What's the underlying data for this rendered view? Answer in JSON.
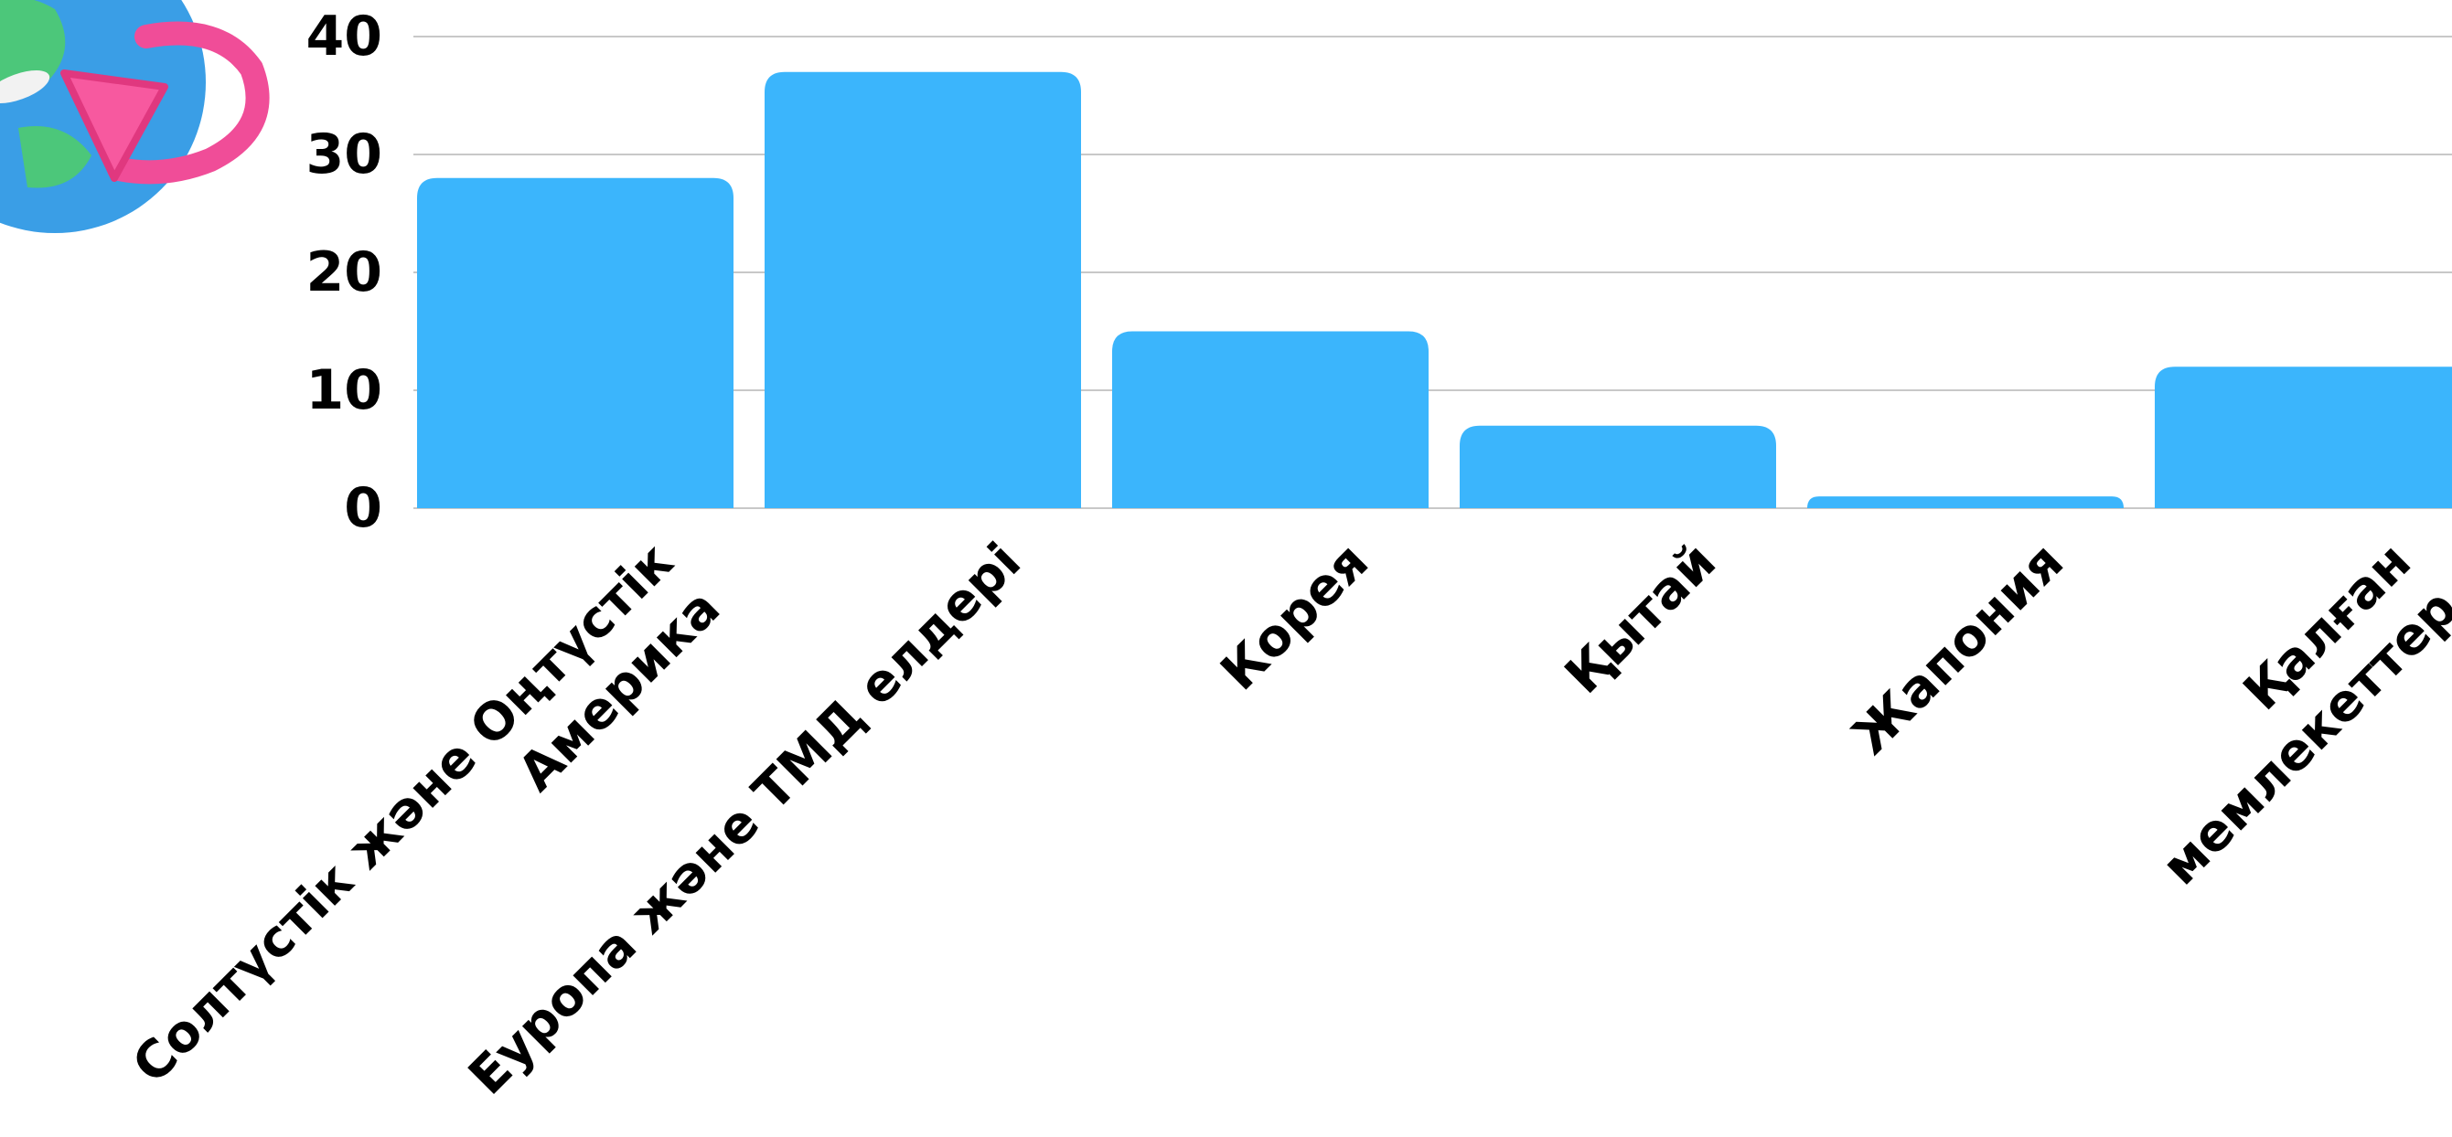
{
  "chart_data": {
    "type": "bar",
    "categories": [
      [
        "Солтүстік және Оңтүстік",
        "Америка"
      ],
      [
        "Еуропа және ТМД елдері"
      ],
      [
        "Корея"
      ],
      [
        "Қытай"
      ],
      [
        "Жапония"
      ],
      [
        "Қалған",
        "мемлекеттер"
      ]
    ],
    "values": [
      28,
      37,
      15,
      7,
      1,
      12
    ],
    "yticks": [
      "0",
      "10",
      "20",
      "30",
      "40"
    ],
    "ylim": [
      0,
      40
    ],
    "grid": true,
    "bar_color": "#3bb5fc",
    "title": "",
    "xlabel": "",
    "ylabel": ""
  },
  "decoration": {
    "icon": "globe-with-airplane-icon"
  }
}
